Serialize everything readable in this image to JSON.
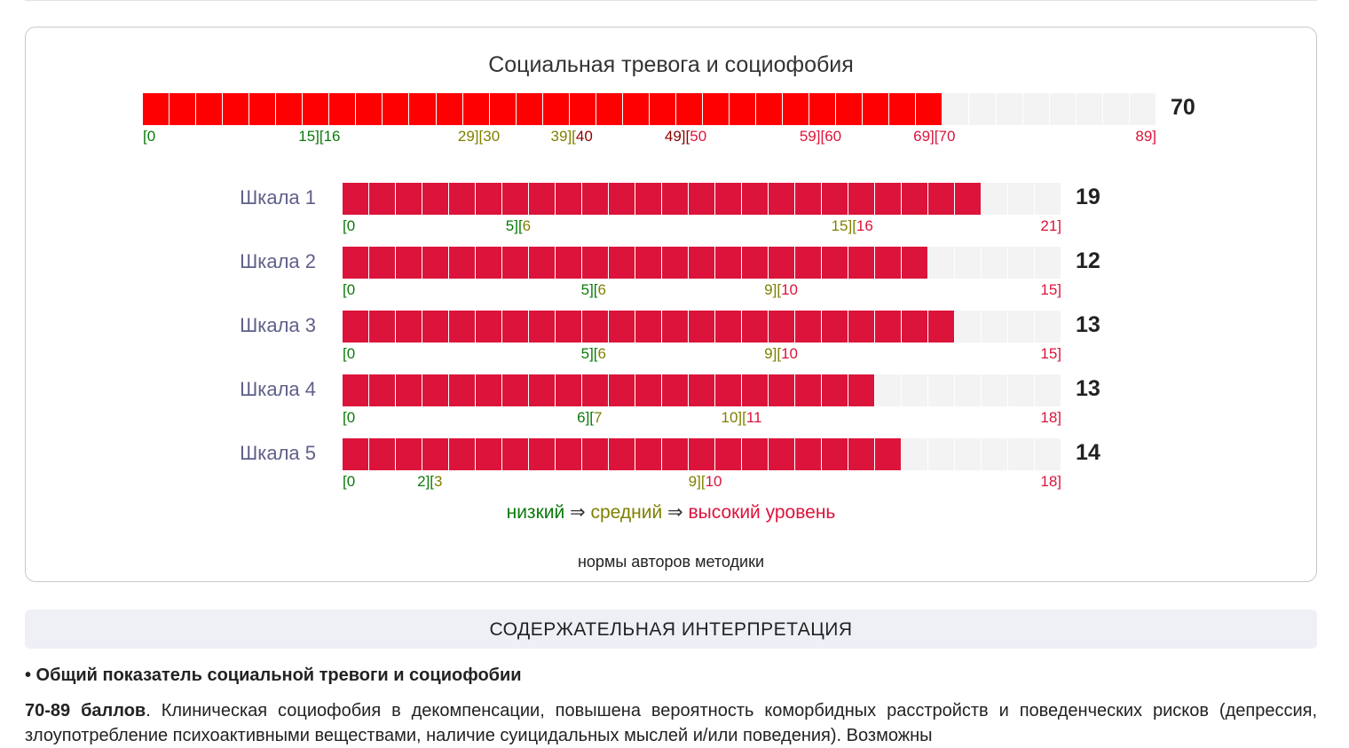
{
  "colors": {
    "low": "#0a7a0a",
    "mid": "#808000",
    "high": "#dc143c",
    "high_dark": "#8b0000",
    "overall_fill": "#ff0000",
    "scale_fill": "#dc143c"
  },
  "chart_data": {
    "type": "bar",
    "title": "Социальная тревога и социофобия",
    "overall": {
      "score": "70",
      "value": 70,
      "max": 89,
      "cells": 38,
      "ticks": [
        {
          "text": "[0",
          "value": 0,
          "color": "low",
          "align": "l"
        },
        {
          "text": "15][16",
          "value": 15.5,
          "color": "low",
          "align": "c"
        },
        {
          "text": "29][30",
          "value": 29.5,
          "color": "mid",
          "align": "c"
        },
        {
          "text": "39][",
          "value": 39.5,
          "color": "mid",
          "align": "r",
          "after": {
            "text": "40",
            "color": "high_dark"
          }
        },
        {
          "text": "49][",
          "value": 49.5,
          "color": "high_dark",
          "align": "r",
          "after": {
            "text": "50",
            "color": "high"
          }
        },
        {
          "text": "59][60",
          "value": 59.5,
          "color": "high",
          "align": "c"
        },
        {
          "text": "69][70",
          "value": 69.5,
          "color": "high",
          "align": "c"
        },
        {
          "text": "89]",
          "value": 89,
          "color": "high",
          "align": "r"
        }
      ]
    },
    "scales": [
      {
        "label": "Шкала 1",
        "score": "19",
        "value": 19,
        "max": 21,
        "cells": 27,
        "ticks": [
          {
            "text": "[0",
            "value": 0,
            "color": "low",
            "align": "l"
          },
          {
            "text": "5][",
            "value": 5.5,
            "color": "low",
            "align": "r",
            "after": {
              "text": "6",
              "color": "mid"
            }
          },
          {
            "text": "15][",
            "value": 15.5,
            "color": "mid",
            "align": "r",
            "after": {
              "text": "16",
              "color": "high"
            }
          },
          {
            "text": "21]",
            "value": 21,
            "color": "high",
            "align": "r"
          }
        ]
      },
      {
        "label": "Шкала 2",
        "score": "12",
        "value": 12,
        "max": 15,
        "cells": 27,
        "ticks": [
          {
            "text": "[0",
            "value": 0,
            "color": "low",
            "align": "l"
          },
          {
            "text": "5][",
            "value": 5.5,
            "color": "low",
            "align": "r",
            "after": {
              "text": "6",
              "color": "mid"
            }
          },
          {
            "text": "9][",
            "value": 9.5,
            "color": "mid",
            "align": "r",
            "after": {
              "text": "10",
              "color": "high"
            }
          },
          {
            "text": "15]",
            "value": 15,
            "color": "high",
            "align": "r"
          }
        ]
      },
      {
        "label": "Шкала 3",
        "score": "13",
        "value": 13,
        "max": 15,
        "cells": 27,
        "ticks": [
          {
            "text": "[0",
            "value": 0,
            "color": "low",
            "align": "l"
          },
          {
            "text": "5][",
            "value": 5.5,
            "color": "low",
            "align": "r",
            "after": {
              "text": "6",
              "color": "mid"
            }
          },
          {
            "text": "9][",
            "value": 9.5,
            "color": "mid",
            "align": "r",
            "after": {
              "text": "10",
              "color": "high"
            }
          },
          {
            "text": "15]",
            "value": 15,
            "color": "high",
            "align": "r"
          }
        ]
      },
      {
        "label": "Шкала 4",
        "score": "13",
        "value": 13,
        "max": 18,
        "cells": 27,
        "ticks": [
          {
            "text": "[0",
            "value": 0,
            "color": "low",
            "align": "l"
          },
          {
            "text": "6][",
            "value": 6.5,
            "color": "low",
            "align": "r",
            "after": {
              "text": "7",
              "color": "mid"
            }
          },
          {
            "text": "10][",
            "value": 10.5,
            "color": "mid",
            "align": "r",
            "after": {
              "text": "11",
              "color": "high"
            }
          },
          {
            "text": "18]",
            "value": 18,
            "color": "high",
            "align": "r"
          }
        ]
      },
      {
        "label": "Шкала 5",
        "score": "14",
        "value": 14,
        "max": 18,
        "cells": 27,
        "ticks": [
          {
            "text": "[0",
            "value": 0,
            "color": "low",
            "align": "l"
          },
          {
            "text": "2][",
            "value": 2.5,
            "color": "low",
            "align": "r",
            "after": {
              "text": "3",
              "color": "mid"
            }
          },
          {
            "text": "9][",
            "value": 9.5,
            "color": "mid",
            "align": "r",
            "after": {
              "text": "10",
              "color": "high"
            }
          },
          {
            "text": "18]",
            "value": 18,
            "color": "high",
            "align": "r"
          }
        ]
      }
    ],
    "legend": {
      "low": "низкий",
      "arrow": " ⇒ ",
      "mid": "средний",
      "high": "высокий уровень"
    },
    "note": "нормы авторов методики"
  },
  "interpretation": {
    "heading": "Содержательная интерпретация",
    "subheading": "• Общий показатель социальной тревоги и социофобии",
    "range_label": "70-89 баллов",
    "text": ". Клиническая социофобия в декомпенсации, повышена вероятность коморбидных расстройств и поведенческих рисков (депрессия, злоупотребление психоактивными веществами, наличие суицидальных мыслей и/или поведения). Возможны"
  }
}
